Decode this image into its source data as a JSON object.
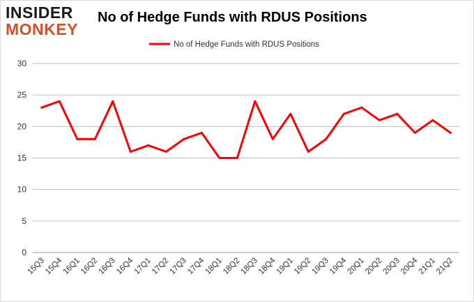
{
  "logo": {
    "line1": "INSIDER",
    "line2": "MONKEY"
  },
  "title": "No of Hedge Funds with RDUS Positions",
  "colors": {
    "series": "#ff0000",
    "grid": "#bfbfbf",
    "text": "#333333"
  },
  "chart_data": {
    "type": "line",
    "title": "No of Hedge Funds with RDUS Positions",
    "xlabel": "",
    "ylabel": "",
    "ylim": [
      0,
      30
    ],
    "yticks": [
      0,
      5,
      10,
      15,
      20,
      25,
      30
    ],
    "grid": true,
    "legend_position": "top-center",
    "categories": [
      "15Q3",
      "15Q4",
      "16Q1",
      "16Q2",
      "16Q3",
      "16Q4",
      "17Q1",
      "17Q2",
      "17Q3",
      "17Q4",
      "18Q1",
      "18Q2",
      "18Q3",
      "18Q4",
      "19Q1",
      "19Q2",
      "19Q3",
      "19Q4",
      "20Q1",
      "20Q2",
      "20Q3",
      "20Q4",
      "21Q1",
      "21Q2"
    ],
    "series": [
      {
        "name": "No of Hedge Funds with RDUS Positions",
        "values": [
          23,
          24,
          18,
          18,
          24,
          16,
          17,
          16,
          18,
          19,
          15,
          15,
          24,
          18,
          22,
          16,
          18,
          22,
          23,
          21,
          22,
          19,
          21,
          19
        ]
      }
    ]
  }
}
